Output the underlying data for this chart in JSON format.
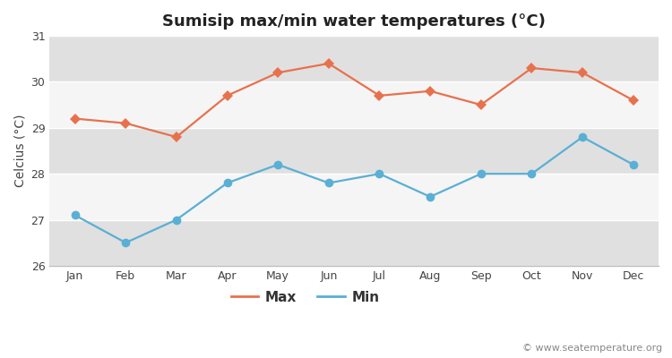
{
  "title": "Sumisip max/min water temperatures (°C)",
  "ylabel": "Celcius (°C)",
  "months": [
    "Jan",
    "Feb",
    "Mar",
    "Apr",
    "May",
    "Jun",
    "Jul",
    "Aug",
    "Sep",
    "Oct",
    "Nov",
    "Dec"
  ],
  "max_temps": [
    29.2,
    29.1,
    28.8,
    29.7,
    30.2,
    30.4,
    29.7,
    29.8,
    29.5,
    30.3,
    30.2,
    29.6
  ],
  "min_temps": [
    27.1,
    26.5,
    27.0,
    27.8,
    28.2,
    27.8,
    28.0,
    27.5,
    28.0,
    28.0,
    28.8,
    28.2
  ],
  "max_color": "#e8714d",
  "min_color": "#5aafd4",
  "fig_bg": "#ffffff",
  "plot_bg": "#e8e8e8",
  "band_light": "#f5f5f5",
  "band_dark": "#e0e0e0",
  "ylim": [
    26,
    31
  ],
  "yticks": [
    26,
    27,
    28,
    29,
    30,
    31
  ],
  "watermark": "© www.seatemperature.org",
  "title_fontsize": 13,
  "label_fontsize": 10,
  "tick_fontsize": 9,
  "watermark_fontsize": 8,
  "line_width": 1.6,
  "marker_size_max": 6,
  "marker_size_min": 7
}
